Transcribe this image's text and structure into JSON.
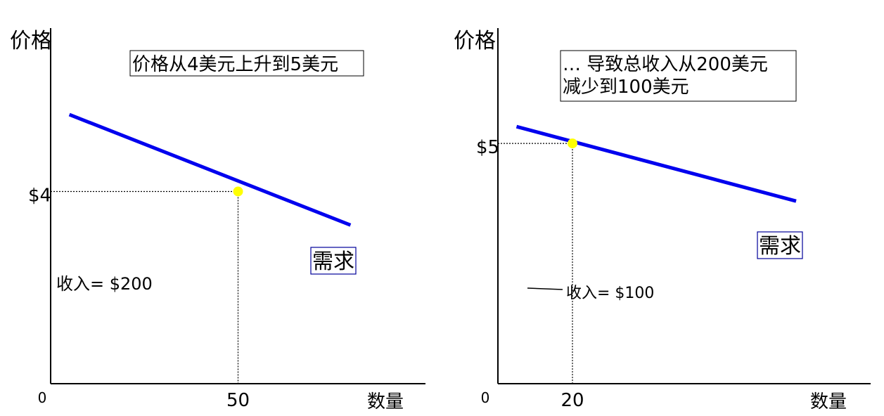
{
  "chart_data": [
    {
      "type": "line",
      "ylabel": "价格",
      "xlabel": "数量",
      "origin_label": "0",
      "callout_lines": [
        "价格从4美元上升到5美元"
      ],
      "series": [
        {
          "name": "需求",
          "x": [
            5,
            80
          ],
          "y": [
            5.6,
            3.3
          ]
        }
      ],
      "point": {
        "x": 50,
        "y": 4
      },
      "x_tick_label": "50",
      "y_tick_label": "$4",
      "annotation": "收入= $200",
      "colors": {
        "curve": "#0000ee",
        "point": "#ffff00"
      }
    },
    {
      "type": "line",
      "ylabel": "价格",
      "xlabel": "数量",
      "origin_label": "0",
      "callout_lines": [
        "… 导致总收入从200美元",
        "减少到100美元"
      ],
      "series": [
        {
          "name": "需求",
          "x": [
            5,
            80
          ],
          "y": [
            5.35,
            3.8
          ]
        }
      ],
      "point": {
        "x": 20,
        "y": 5
      },
      "x_tick_label": "20",
      "y_tick_label": "$5",
      "annotation": "收入= $100",
      "colors": {
        "curve": "#0000ee",
        "point": "#ffff00"
      }
    }
  ]
}
